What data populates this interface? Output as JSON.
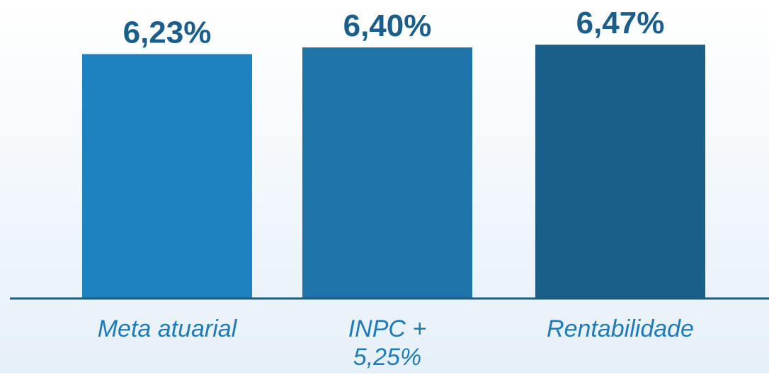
{
  "chart_data": {
    "type": "bar",
    "categories": [
      "Meta atuarial",
      "INPC + 5,25%",
      "Rentabilidade"
    ],
    "category_lines": [
      [
        "Meta atuarial"
      ],
      [
        "INPC +",
        "5,25%"
      ],
      [
        "Rentabilidade"
      ]
    ],
    "values": [
      6.23,
      6.4,
      6.47
    ],
    "data_labels": [
      "6,23%",
      "6,40%",
      "6,47%"
    ],
    "title": "",
    "xlabel": "",
    "ylabel": "",
    "ylim": [
      0,
      6.6
    ],
    "grid": false,
    "legend": "none",
    "colors": {
      "bars": [
        "#1f82c0",
        "#1e73a8",
        "#1a5f8a"
      ],
      "value_labels": "#1a5e8c",
      "category_labels": "#1f7ab8",
      "axis": "#1d5a80"
    }
  }
}
